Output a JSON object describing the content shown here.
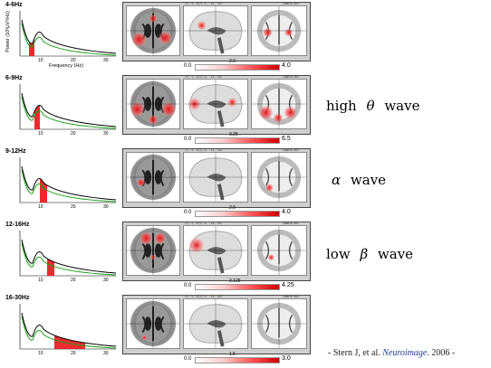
{
  "bands": [
    {
      "label": "4-6Hz",
      "cbar_low": "0.0",
      "cbar_mid": "2.0",
      "cbar_high": "4.0"
    },
    {
      "label": "6-9Hz",
      "cbar_low": "0.0",
      "cbar_mid": "3.25",
      "cbar_high": "6.5"
    },
    {
      "label": "9-12Hz",
      "cbar_low": "0.0",
      "cbar_mid": "2.0",
      "cbar_high": "4.0"
    },
    {
      "label": "12-16Hz",
      "cbar_low": "0.0",
      "cbar_mid": "2.125",
      "cbar_high": "4.25"
    },
    {
      "label": "16-30Hz",
      "cbar_low": "0.0",
      "cbar_mid": "1.5",
      "cbar_high": "3.0"
    }
  ],
  "spectrum_axis": {
    "ylabel": "Power (10³µV²/Hz)",
    "xlabel": "Frequency (Hz)",
    "xticks": [
      "10",
      "20",
      "30"
    ]
  },
  "panel_header": {
    "left": "(X, Y, Z)=(-4, -11, 13)",
    "right": "LORETA-KEY"
  },
  "annotations": [
    {
      "greek": "θ",
      "prefix": "high",
      "suffix": "wave"
    },
    {
      "greek": "α",
      "prefix": "",
      "suffix": "wave"
    },
    {
      "greek": "β",
      "prefix": "low",
      "suffix": "wave"
    }
  ],
  "citation": {
    "prefix": "- Stern J, et al.",
    "journal": "Neuroimage",
    "suffix": ". 2006 -"
  },
  "colors": {
    "accent_red": "#e8141a",
    "curve_green": "#1aa31a",
    "curve_black": "#000000"
  }
}
